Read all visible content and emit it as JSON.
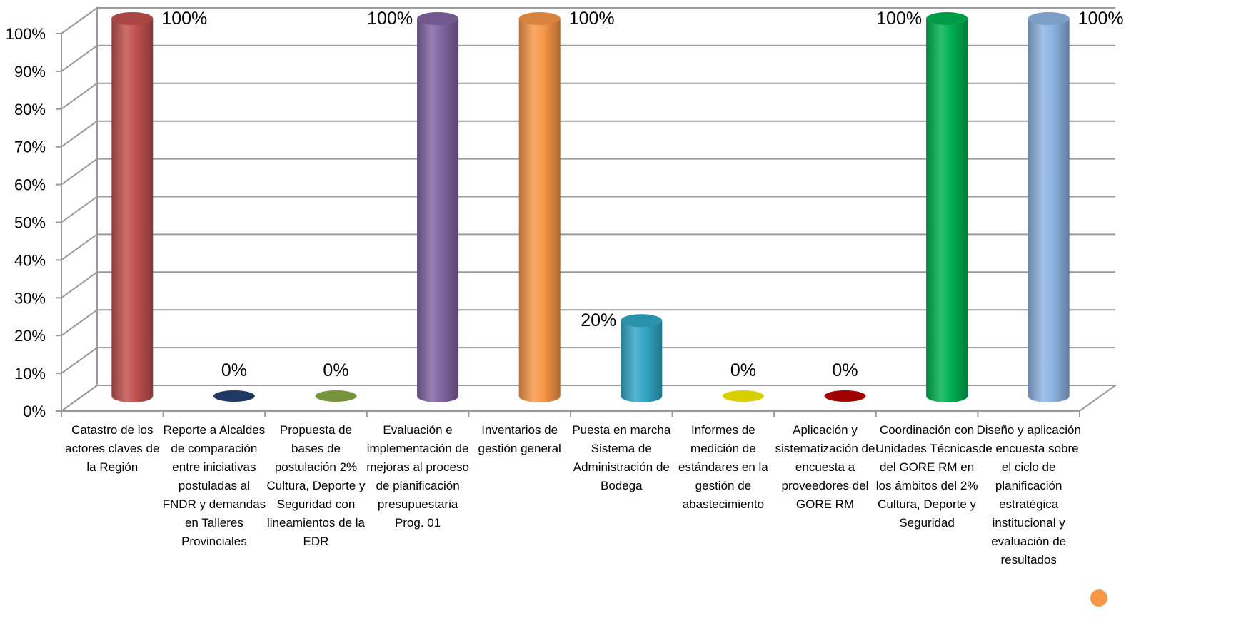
{
  "chart_data": {
    "type": "bar",
    "style": "3d-cylinder",
    "categories": [
      "Catastro de los actores claves de la Región",
      "Reporte a Alcaldes de comparación entre iniciativas postuladas al FNDR y demandas en Talleres Provinciales",
      "Propuesta de bases de postulación 2% Cultura, Deporte y Seguridad con lineamientos de la EDR",
      "Evaluación e implementación de mejoras al proceso de planificación presupuestaria Prog. 01",
      "Inventarios de gestión general",
      "Puesta en marcha Sistema de Administración de Bodega",
      "Informes de medición de estándares en la gestión de abastecimiento",
      "Aplicación y sistematización de encuesta a proveedores del GORE RM",
      "Coordinación con Unidades Técnicas del GORE RM en los ámbitos del 2% Cultura, Deporte y Seguridad",
      "Diseño y aplicación de encuesta sobre el ciclo de planificación estratégica institucional y evaluación de resultados"
    ],
    "values": [
      100,
      0,
      0,
      100,
      100,
      20,
      0,
      0,
      100,
      100
    ],
    "value_labels": [
      "100%",
      "0%",
      "0%",
      "100%",
      "100%",
      "20%",
      "0%",
      "0%",
      "100%",
      "100%"
    ],
    "colors": [
      "#c0504d",
      "#1f3864",
      "#77933c",
      "#8064a2",
      "#f79646",
      "#31a6c4",
      "#d7d000",
      "#a00000",
      "#00b050",
      "#8db3e2"
    ],
    "ylim": [
      0,
      100
    ],
    "yticks": [
      "0%",
      "10%",
      "20%",
      "30%",
      "40%",
      "50%",
      "60%",
      "70%",
      "80%",
      "90%",
      "100%"
    ],
    "grid": true,
    "legend": "none",
    "accent_dot_color": "#f79646"
  }
}
